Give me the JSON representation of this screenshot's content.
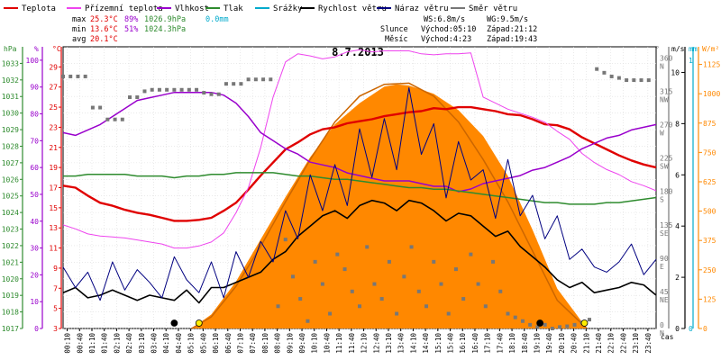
{
  "legend": [
    {
      "label": "Teplota",
      "color": "#e00000"
    },
    {
      "label": "Přízemní teplota",
      "color": "#ee44ee"
    },
    {
      "label": "Vlhkost",
      "color": "#9900cc"
    },
    {
      "label": "Tlak",
      "color": "#2e8b2e"
    },
    {
      "label": "Srážky",
      "color": "#00aacc"
    },
    {
      "label": "Rychlost větru",
      "color": "#000000"
    },
    {
      "label": "Náraz větru",
      "color": "#000080"
    },
    {
      "label": "Směr větru",
      "color": "#777777"
    }
  ],
  "stats": {
    "labels": [
      "max",
      "min",
      "avg"
    ],
    "rows": [
      {
        "temp": "25.3°C",
        "hum": "89%",
        "press": "1026.9hPa",
        "rain": "0.0mm"
      },
      {
        "temp": "13.6°C",
        "hum": "51%",
        "press": "1024.3hPa"
      },
      {
        "temp": "20.1°C"
      }
    ],
    "ws": "WS:6.8m/s",
    "wg": "WG:9.5m/s",
    "sun_label": "Slunce",
    "sun_rise": "Východ:05:10",
    "sun_set": "Západ:21:12",
    "moon_label": "Měsíc",
    "moon_rise": "Východ:4:23",
    "moon_set": "Západ:19:43"
  },
  "axes": {
    "units": {
      "hpa": "hPa",
      "pct": "%",
      "degc": "°C",
      "deg": "°",
      "ms": "m/s",
      "mm": "mm",
      "wm2": "W/m²",
      "cas": "čas"
    },
    "hpa_ticks": [
      "1017",
      "1018",
      "1019",
      "1020",
      "1021",
      "1022",
      "1023",
      "1024",
      "1025",
      "1026",
      "1027",
      "1028",
      "1029",
      "1030",
      "1031",
      "1032",
      "1033"
    ],
    "pct_ticks": [
      "0",
      "10",
      "20",
      "30",
      "40",
      "50",
      "60",
      "70",
      "80",
      "90",
      "100"
    ],
    "degc_ticks": [
      "3",
      "5",
      "7",
      "9",
      "11",
      "13",
      "15",
      "17",
      "19",
      "21",
      "23",
      "25",
      "27",
      "29"
    ],
    "dir_ticks": [
      {
        "deg": "0",
        "dir": "N"
      },
      {
        "deg": "45",
        "dir": "NE"
      },
      {
        "deg": "90",
        "dir": "E"
      },
      {
        "deg": "135",
        "dir": "SE"
      },
      {
        "deg": "180",
        "dir": "S"
      },
      {
        "deg": "225",
        "dir": "SW"
      },
      {
        "deg": "270",
        "dir": "W"
      },
      {
        "deg": "315",
        "dir": "NW"
      },
      {
        "deg": "360",
        "dir": "N"
      }
    ],
    "ms_ticks": [
      "0",
      "2",
      "4",
      "6",
      "8",
      "10"
    ],
    "mm_ticks": [
      "0",
      "1"
    ],
    "wm2_ticks": [
      "0",
      "125",
      "250",
      "375",
      "500",
      "625",
      "750",
      "875",
      "1000",
      "1125"
    ]
  },
  "chart_data": {
    "type": "line",
    "title": "8.7.2013",
    "x_labels": [
      "00:10",
      "00:40",
      "01:10",
      "01:40",
      "02:10",
      "02:40",
      "03:10",
      "03:40",
      "04:10",
      "04:40",
      "05:10",
      "05:40",
      "06:10",
      "06:40",
      "07:10",
      "07:40",
      "08:10",
      "08:40",
      "09:10",
      "09:40",
      "10:10",
      "10:40",
      "11:10",
      "11:40",
      "12:10",
      "12:40",
      "13:10",
      "13:40",
      "14:10",
      "14:40",
      "15:10",
      "15:40",
      "16:10",
      "16:40",
      "17:10",
      "17:40",
      "18:10",
      "18:40",
      "19:10",
      "19:40",
      "20:10",
      "20:40",
      "21:10",
      "21:40",
      "22:10",
      "22:40",
      "23:10",
      "23:40"
    ],
    "xlabel": "čas",
    "series": [
      {
        "name": "Teplota",
        "axis": "degc",
        "color": "#e00000",
        "width": 2.4,
        "x": [
          0,
          0.5,
          1,
          1.5,
          2,
          2.5,
          3,
          3.5,
          4,
          4.5,
          5,
          5.5,
          6,
          6.5,
          7,
          7.5,
          8,
          8.5,
          9,
          9.5,
          10,
          10.5,
          11,
          11.5,
          12,
          12.5,
          13,
          13.5,
          14,
          14.5,
          15,
          15.5,
          16,
          16.5,
          17,
          17.5,
          18,
          18.5,
          19,
          19.5,
          20,
          20.5,
          21,
          21.5,
          22,
          22.5,
          23,
          23.5,
          24
        ],
        "y": [
          17.2,
          17.0,
          16.2,
          15.5,
          15.2,
          14.8,
          14.5,
          14.3,
          14.0,
          13.7,
          13.7,
          13.8,
          14.0,
          14.7,
          15.5,
          16.8,
          18.2,
          19.5,
          20.8,
          21.5,
          22.3,
          22.8,
          23.0,
          23.4,
          23.6,
          23.8,
          24.1,
          24.3,
          24.5,
          24.6,
          24.9,
          24.8,
          25.0,
          25.0,
          24.8,
          24.6,
          24.3,
          24.2,
          23.8,
          23.3,
          23.2,
          22.8,
          22.0,
          21.4,
          20.8,
          20.2,
          19.7,
          19.3,
          19.0
        ]
      },
      {
        "name": "Přízemní teplota",
        "axis": "degc",
        "color": "#ee44ee",
        "width": 1,
        "x": [
          0,
          0.5,
          1,
          1.5,
          2,
          2.5,
          3,
          3.5,
          4,
          4.5,
          5,
          5.5,
          6,
          6.5,
          7,
          7.5,
          8,
          8.5,
          9,
          9.5,
          10,
          10.5,
          11,
          11.5,
          12,
          12.5,
          13,
          13.5,
          14,
          14.5,
          15,
          15.5,
          16,
          16.5,
          17,
          17.5,
          18,
          18.5,
          19,
          19.5,
          20,
          20.5,
          21,
          21.5,
          22,
          22.5,
          23,
          23.5,
          24
        ],
        "y": [
          13.3,
          12.9,
          12.4,
          12.2,
          12.1,
          12.0,
          11.8,
          11.6,
          11.4,
          11.0,
          11.0,
          11.2,
          11.6,
          12.5,
          14.5,
          17.0,
          21.0,
          26.0,
          29.5,
          30.3,
          30.1,
          29.8,
          30.0,
          30.5,
          30.7,
          30.5,
          30.6,
          30.6,
          30.6,
          30.3,
          30.2,
          30.3,
          30.3,
          30.4,
          26.0,
          25.4,
          24.8,
          24.4,
          24.0,
          23.5,
          22.6,
          21.8,
          20.4,
          19.5,
          18.8,
          18.3,
          17.6,
          17.2,
          16.7
        ]
      },
      {
        "name": "Vlhkost",
        "axis": "pct",
        "color": "#9900cc",
        "width": 1.5,
        "x": [
          0,
          0.5,
          1,
          1.5,
          2,
          2.5,
          3,
          3.5,
          4,
          4.5,
          5,
          5.5,
          6,
          6.5,
          7,
          7.5,
          8,
          8.5,
          9,
          9.5,
          10,
          10.5,
          11,
          11.5,
          12,
          12.5,
          13,
          13.5,
          14,
          14.5,
          15,
          15.5,
          16,
          16.5,
          17,
          17.5,
          18,
          18.5,
          19,
          19.5,
          20,
          20.5,
          21,
          21.5,
          22,
          22.5,
          23,
          23.5,
          24
        ],
        "y": [
          73,
          72,
          74,
          76,
          79,
          82,
          85,
          86,
          87,
          88,
          88,
          88,
          88,
          87,
          84,
          79,
          73,
          70,
          67,
          65,
          62,
          61,
          60,
          58,
          57,
          56,
          55,
          55,
          55,
          54,
          53,
          53,
          51,
          52,
          54,
          55,
          56,
          57,
          59,
          60,
          62,
          64,
          67,
          69,
          71,
          72,
          74,
          75,
          76
        ]
      },
      {
        "name": "Tlak",
        "axis": "hpa",
        "color": "#2e8b2e",
        "width": 1.5,
        "x": [
          0,
          0.5,
          1,
          1.5,
          2,
          2.5,
          3,
          3.5,
          4,
          4.5,
          5,
          5.5,
          6,
          6.5,
          7,
          7.5,
          8,
          8.5,
          9,
          9.5,
          10,
          10.5,
          11,
          11.5,
          12,
          12.5,
          13,
          13.5,
          14,
          14.5,
          15,
          15.5,
          16,
          16.5,
          17,
          17.5,
          18,
          18.5,
          19,
          19.5,
          20,
          20.5,
          21,
          21.5,
          22,
          22.5,
          23,
          23.5,
          24
        ],
        "y": [
          1026.2,
          1026.2,
          1026.3,
          1026.3,
          1026.3,
          1026.3,
          1026.2,
          1026.2,
          1026.2,
          1026.1,
          1026.2,
          1026.2,
          1026.3,
          1026.3,
          1026.4,
          1026.4,
          1026.4,
          1026.4,
          1026.3,
          1026.2,
          1026.2,
          1026.1,
          1026.0,
          1026.0,
          1025.9,
          1025.8,
          1025.7,
          1025.6,
          1025.5,
          1025.5,
          1025.4,
          1025.4,
          1025.3,
          1025.2,
          1025.1,
          1025.0,
          1024.9,
          1024.8,
          1024.7,
          1024.6,
          1024.6,
          1024.5,
          1024.5,
          1024.5,
          1024.6,
          1024.6,
          1024.7,
          1024.8,
          1024.9
        ]
      },
      {
        "name": "Rychlost větru",
        "axis": "ms",
        "color": "#000000",
        "width": 1.6,
        "x": [
          0,
          0.5,
          1,
          1.5,
          2,
          2.5,
          3,
          3.5,
          4,
          4.5,
          5,
          5.5,
          6,
          6.5,
          7,
          7.5,
          8,
          8.5,
          9,
          9.5,
          10,
          10.5,
          11,
          11.5,
          12,
          12.5,
          13,
          13.5,
          14,
          14.5,
          15,
          15.5,
          16,
          16.5,
          17,
          17.5,
          18,
          18.5,
          19,
          19.5,
          20,
          20.5,
          21,
          21.5,
          22,
          22.5,
          23,
          23.5,
          24
        ],
        "y": [
          1.4,
          1.6,
          1.2,
          1.3,
          1.5,
          1.3,
          1.1,
          1.3,
          1.2,
          1.1,
          1.5,
          1.0,
          1.6,
          1.6,
          1.8,
          2.0,
          2.2,
          2.7,
          3.0,
          3.6,
          4.0,
          4.4,
          4.6,
          4.3,
          4.8,
          5.0,
          4.9,
          4.6,
          5.0,
          4.9,
          4.6,
          4.2,
          4.5,
          4.4,
          4.0,
          3.6,
          3.8,
          3.2,
          2.8,
          2.4,
          1.9,
          1.6,
          1.8,
          1.4,
          1.5,
          1.6,
          1.8,
          1.7,
          1.3
        ]
      },
      {
        "name": "Náraz větru",
        "axis": "ms",
        "color": "#000080",
        "width": 1,
        "x": [
          0,
          0.5,
          1,
          1.5,
          2,
          2.5,
          3,
          3.5,
          4,
          4.5,
          5,
          5.5,
          6,
          6.5,
          7,
          7.5,
          8,
          8.5,
          9,
          9.5,
          10,
          10.5,
          11,
          11.5,
          12,
          12.5,
          13,
          13.5,
          14,
          14.5,
          15,
          15.5,
          16,
          16.5,
          17,
          17.5,
          18,
          18.5,
          19,
          19.5,
          20,
          20.5,
          21,
          21.5,
          22,
          22.5,
          23,
          23.5,
          24
        ],
        "y": [
          2.4,
          1.6,
          2.2,
          1.1,
          2.6,
          1.5,
          2.3,
          1.8,
          1.2,
          2.8,
          1.9,
          1.4,
          2.6,
          1.2,
          3.0,
          2.0,
          3.4,
          2.6,
          4.6,
          3.5,
          6.0,
          4.6,
          6.4,
          4.8,
          7.8,
          5.9,
          8.2,
          6.2,
          9.4,
          6.8,
          8.0,
          5.1,
          7.3,
          5.8,
          6.2,
          4.3,
          6.6,
          4.4,
          5.2,
          3.5,
          4.4,
          2.7,
          3.1,
          2.4,
          2.2,
          2.6,
          3.3,
          2.1,
          2.7
        ]
      },
      {
        "name": "Směr větru",
        "axis": "dir",
        "color": "#777777",
        "type": "scatter",
        "x": [
          0,
          0.3,
          0.6,
          0.9,
          1.2,
          1.5,
          1.8,
          2.1,
          2.4,
          2.7,
          3.0,
          3.3,
          3.6,
          3.9,
          4.2,
          4.5,
          4.8,
          5.1,
          5.4,
          5.7,
          6.0,
          6.3,
          6.6,
          6.9,
          7.2,
          7.5,
          7.8,
          8.1,
          8.4,
          8.7,
          9.0,
          9.3,
          9.6,
          9.9,
          10.2,
          10.5,
          10.8,
          11.1,
          11.4,
          11.7,
          12.0,
          12.3,
          12.6,
          12.9,
          13.2,
          13.5,
          13.8,
          14.1,
          14.4,
          14.7,
          15.0,
          15.3,
          15.6,
          15.9,
          16.2,
          16.5,
          16.8,
          17.1,
          17.4,
          17.7,
          18.0,
          18.3,
          18.6,
          18.9,
          19.2,
          19.5,
          19.8,
          20.1,
          20.4,
          20.7,
          21.0,
          21.3,
          21.6,
          21.9,
          22.2,
          22.5,
          22.8,
          23.1,
          23.4,
          23.7
        ],
        "y": [
          340,
          340,
          340,
          340,
          298,
          298,
          282,
          282,
          282,
          312,
          312,
          320,
          322,
          322,
          322,
          322,
          322,
          322,
          322,
          318,
          316,
          316,
          330,
          330,
          330,
          336,
          336,
          336,
          336,
          30,
          120,
          70,
          40,
          10,
          90,
          60,
          20,
          100,
          80,
          50,
          30,
          110,
          60,
          40,
          90,
          20,
          70,
          110,
          50,
          30,
          90,
          60,
          20,
          80,
          40,
          100,
          60,
          30,
          90,
          50,
          20,
          15,
          10,
          5,
          2,
          5,
          0,
          2,
          3,
          5,
          8,
          12,
          350,
          345,
          340,
          338,
          335,
          335,
          335,
          335
        ]
      }
    ],
    "solar": {
      "axis": "wm2",
      "name": "Sluneční záření",
      "color": "#ff8800",
      "x": [
        5.2,
        6,
        7,
        8,
        9,
        10,
        11,
        12,
        13,
        13.5,
        14,
        15,
        16,
        17,
        18,
        19,
        20,
        21.2
      ],
      "y": [
        0,
        60,
        200,
        380,
        560,
        730,
        870,
        960,
        1030,
        1040,
        1035,
        1000,
        930,
        820,
        650,
        420,
        170,
        0
      ]
    },
    "solar_theory": {
      "axis": "wm2",
      "color": "#cc6600",
      "x": [
        5.2,
        6,
        7,
        8,
        9,
        10,
        11,
        12,
        13,
        14,
        15,
        16,
        17,
        18,
        19,
        20,
        21.2
      ],
      "y": [
        0,
        50,
        180,
        350,
        540,
        720,
        880,
        990,
        1040,
        1045,
        990,
        880,
        720,
        540,
        330,
        120,
        0
      ]
    },
    "markers": [
      {
        "x": 4.5,
        "color": "#000000"
      },
      {
        "x": 5.5,
        "color": "#ffee00"
      },
      {
        "x": 19.3,
        "color": "#000000"
      },
      {
        "x": 21.1,
        "color": "#ffee00"
      }
    ],
    "ranges": {
      "hpa": [
        1017,
        1034
      ],
      "pct": [
        0,
        105
      ],
      "degc": [
        3,
        31
      ],
      "dir": [
        0,
        380
      ],
      "ms": [
        0,
        11
      ],
      "mm": [
        0,
        1.05
      ],
      "wm2": [
        0,
        1200
      ]
    },
    "grid": true
  }
}
